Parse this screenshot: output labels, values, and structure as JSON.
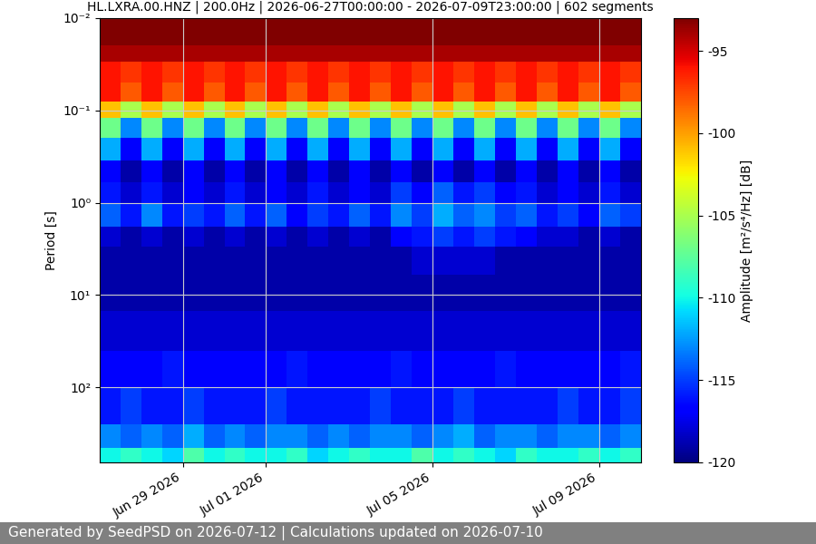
{
  "chart_data": {
    "type": "heatmap",
    "title": "HL.LXRA.00.HNZ | 200.0Hz | 2026-06-27T00:00:00 - 2026-07-09T23:00:00 | 602 segments",
    "y_label": "Period [s]",
    "footer": "Generated by SeedPSD on 2026-07-12 | Calculations updated on 2026-07-10",
    "log": "y",
    "grid": true,
    "xlim": [
      "2026-06-27T00:00",
      "2026-07-10T00:00"
    ],
    "xticks": [
      {
        "value": "2026-06-29T00:00",
        "label": "Jun 29 2026"
      },
      {
        "value": "2026-07-01T00:00",
        "label": "Jul 01 2026"
      },
      {
        "value": "2026-07-05T00:00",
        "label": "Jul 05 2026"
      },
      {
        "value": "2026-07-09T00:00",
        "label": "Jul 09 2026"
      }
    ],
    "ylim": [
      650,
      0.01
    ],
    "yticks": [
      {
        "value": 0.01,
        "label": "10⁻²"
      },
      {
        "value": 0.1,
        "label": "10⁻¹"
      },
      {
        "value": 1,
        "label": "10⁰"
      },
      {
        "value": 10,
        "label": "10¹"
      },
      {
        "value": 100,
        "label": "10²"
      }
    ],
    "time_edges": [
      "2026-06-27T00:00",
      "2026-06-27T12:00",
      "2026-06-28T00:00",
      "2026-06-28T12:00",
      "2026-06-29T00:00",
      "2026-06-29T12:00",
      "2026-06-30T00:00",
      "2026-06-30T12:00",
      "2026-07-01T00:00",
      "2026-07-01T12:00",
      "2026-07-02T00:00",
      "2026-07-02T12:00",
      "2026-07-03T00:00",
      "2026-07-03T12:00",
      "2026-07-04T00:00",
      "2026-07-04T12:00",
      "2026-07-05T00:00",
      "2026-07-05T12:00",
      "2026-07-06T00:00",
      "2026-07-06T12:00",
      "2026-07-07T00:00",
      "2026-07-07T12:00",
      "2026-07-08T00:00",
      "2026-07-08T12:00",
      "2026-07-09T00:00",
      "2026-07-09T12:00",
      "2026-07-10T00:00"
    ],
    "period_edges": [
      0.01,
      0.02,
      0.03,
      0.05,
      0.08,
      0.12,
      0.2,
      0.35,
      0.6,
      1.0,
      1.8,
      3,
      6,
      15,
      40,
      100,
      250,
      450,
      650
    ],
    "cells": [
      [
        -93,
        -93,
        -93,
        -93,
        -93,
        -93,
        -93,
        -93,
        -93,
        -93,
        -93,
        -93,
        -93,
        -93,
        -93,
        -93,
        -93,
        -93,
        -93,
        -93,
        -93,
        -93,
        -93,
        -93,
        -93,
        -93
      ],
      [
        -94,
        -94,
        -94,
        -94,
        -94,
        -94,
        -94,
        -94,
        -94,
        -94,
        -94,
        -94,
        -94,
        -94,
        -94,
        -94,
        -94,
        -94,
        -94,
        -94,
        -94,
        -94,
        -94,
        -94,
        -94,
        -94
      ],
      [
        -96,
        -97,
        -96,
        -97,
        -96,
        -97,
        -96,
        -97,
        -96,
        -97,
        -96,
        -97,
        -96,
        -97,
        -96,
        -97,
        -96,
        -97,
        -96,
        -97,
        -96,
        -97,
        -96,
        -97,
        -96,
        -97
      ],
      [
        -96,
        -98,
        -96,
        -98,
        -96,
        -98,
        -96,
        -98,
        -96,
        -98,
        -96,
        -98,
        -96,
        -98,
        -96,
        -98,
        -96,
        -98,
        -96,
        -98,
        -96,
        -98,
        -96,
        -98,
        -96,
        -98
      ],
      [
        -101,
        -105,
        -101,
        -105,
        -101,
        -105,
        -101,
        -105,
        -101,
        -105,
        -101,
        -105,
        -101,
        -105,
        -101,
        -105,
        -101,
        -105,
        -101,
        -105,
        -101,
        -105,
        -101,
        -105,
        -101,
        -105
      ],
      [
        -107,
        -113,
        -107,
        -113,
        -107,
        -113,
        -107,
        -113,
        -107,
        -113,
        -107,
        -113,
        -107,
        -113,
        -107,
        -113,
        -107,
        -113,
        -107,
        -113,
        -107,
        -113,
        -107,
        -113,
        -107,
        -113
      ],
      [
        -112,
        -117,
        -112,
        -117,
        -112,
        -117,
        -112,
        -117,
        -112,
        -117,
        -112,
        -117,
        -112,
        -117,
        -112,
        -117,
        -112,
        -117,
        -112,
        -117,
        -112,
        -117,
        -112,
        -117,
        -112,
        -117
      ],
      [
        -117,
        -119,
        -117,
        -119,
        -117,
        -119,
        -117,
        -119,
        -117,
        -119,
        -117,
        -119,
        -117,
        -119,
        -117,
        -119,
        -117,
        -119,
        -117,
        -119,
        -117,
        -119,
        -117,
        -119,
        -117,
        -119
      ],
      [
        -116,
        -118,
        -116,
        -118,
        -117,
        -118,
        -116,
        -118,
        -117,
        -118,
        -116,
        -118,
        -117,
        -118,
        -115,
        -117,
        -114,
        -116,
        -115,
        -117,
        -116,
        -118,
        -117,
        -118,
        -116,
        -118
      ],
      [
        -114,
        -116,
        -113,
        -116,
        -115,
        -116,
        -114,
        -116,
        -114,
        -117,
        -115,
        -116,
        -114,
        -116,
        -113,
        -115,
        -112,
        -114,
        -113,
        -115,
        -114,
        -116,
        -115,
        -117,
        -114,
        -115
      ],
      [
        -118,
        -119,
        -118,
        -119,
        -118,
        -119,
        -118,
        -119,
        -118,
        -119,
        -118,
        -119,
        -118,
        -119,
        -117,
        -116,
        -115,
        -116,
        -115,
        -116,
        -117,
        -118,
        -118,
        -119,
        -118,
        -119
      ],
      [
        -119,
        -119,
        -119,
        -119,
        -119,
        -119,
        -119,
        -119,
        -119,
        -119,
        -119,
        -119,
        -119,
        -119,
        -119,
        -118,
        -118,
        -118,
        -118,
        -119,
        -119,
        -119,
        -119,
        -119,
        -119,
        -119
      ],
      [
        -119,
        -119,
        -119,
        -119,
        -119,
        -119,
        -119,
        -119,
        -119,
        -119,
        -119,
        -119,
        -119,
        -119,
        -119,
        -119,
        -119,
        -119,
        -119,
        -119,
        -119,
        -119,
        -119,
        -119,
        -119,
        -119
      ],
      [
        -118,
        -118,
        -118,
        -118,
        -118,
        -118,
        -118,
        -118,
        -118,
        -118,
        -118,
        -118,
        -118,
        -118,
        -118,
        -118,
        -118,
        -118,
        -118,
        -118,
        -118,
        -118,
        -118,
        -118,
        -118,
        -118
      ],
      [
        -117,
        -117,
        -117,
        -116,
        -117,
        -117,
        -117,
        -117,
        -117,
        -116,
        -117,
        -117,
        -117,
        -117,
        -116,
        -117,
        -117,
        -117,
        -117,
        -116,
        -117,
        -117,
        -117,
        -117,
        -117,
        -116
      ],
      [
        -116,
        -115,
        -116,
        -116,
        -115,
        -116,
        -116,
        -116,
        -115,
        -116,
        -116,
        -116,
        -116,
        -115,
        -116,
        -116,
        -116,
        -115,
        -116,
        -116,
        -116,
        -116,
        -115,
        -116,
        -116,
        -115
      ],
      [
        -113,
        -114,
        -113,
        -114,
        -112,
        -114,
        -113,
        -114,
        -113,
        -113,
        -114,
        -113,
        -114,
        -113,
        -113,
        -114,
        -113,
        -112,
        -114,
        -113,
        -113,
        -114,
        -113,
        -113,
        -114,
        -113
      ],
      [
        -110,
        -109,
        -110,
        -111,
        -108,
        -110,
        -109,
        -110,
        -110,
        -109,
        -111,
        -110,
        -109,
        -110,
        -110,
        -108,
        -110,
        -109,
        -110,
        -111,
        -109,
        -110,
        -110,
        -109,
        -110,
        -109
      ]
    ],
    "colorbar": {
      "label": "Amplitude [m²/s⁴/Hz] [dB]",
      "lim": [
        -120,
        -93
      ],
      "ticks": [
        -95,
        -100,
        -105,
        -110,
        -115,
        -120
      ]
    }
  }
}
